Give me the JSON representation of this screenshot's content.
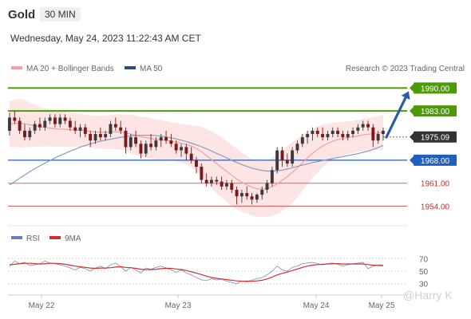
{
  "header": {
    "symbol": "Gold",
    "timeframe": "30 MIN",
    "datetime": "Wednesday, May 24, 2023 11:22:43 AM CET"
  },
  "legend": {
    "ma20": "MA 20 + Bollinger Bands",
    "ma50": "MA 50",
    "credit": "Research © 2023 Trading Central",
    "rsi": "RSI",
    "rsi_ma": "9MA"
  },
  "watermark": "@Harry K",
  "colors": {
    "up": "#3b3b3b",
    "down": "#7a1a1a",
    "band": "#fde0e0",
    "ma20": "#f2a0a0",
    "ma50": "#8a9bbf",
    "resistance": "#4e9a06",
    "pivot": "#1f5fbf",
    "support": "#e06060",
    "current": "#333333",
    "arrow": "#2a5aa8",
    "rsi": "#8a9bbf",
    "rsi_ma": "#d03030"
  },
  "chart_data": {
    "type": "candlestick",
    "x_ticks": [
      "May 22",
      "May 23",
      "May 24",
      "May 25"
    ],
    "y_range": [
      1950,
      1993
    ],
    "levels": [
      {
        "value": 1990.0,
        "label": "1990.00",
        "kind": "resistance"
      },
      {
        "value": 1983.0,
        "label": "1983.00",
        "kind": "resistance"
      },
      {
        "value": 1975.09,
        "label": "1975.09",
        "kind": "current"
      },
      {
        "value": 1968.0,
        "label": "1968.00",
        "kind": "pivot"
      },
      {
        "value": 1961.0,
        "label": "1961.00",
        "kind": "support"
      },
      {
        "value": 1954.0,
        "label": "1954.00",
        "kind": "support"
      }
    ],
    "candles": [
      {
        "o": 1977,
        "h": 1982.5,
        "l": 1975.5,
        "c": 1981
      },
      {
        "o": 1981,
        "h": 1983,
        "l": 1979,
        "c": 1980
      },
      {
        "o": 1980,
        "h": 1981,
        "l": 1976,
        "c": 1977
      },
      {
        "o": 1977,
        "h": 1979,
        "l": 1974,
        "c": 1975
      },
      {
        "o": 1975,
        "h": 1978,
        "l": 1974,
        "c": 1977
      },
      {
        "o": 1977,
        "h": 1980,
        "l": 1976,
        "c": 1979
      },
      {
        "o": 1979,
        "h": 1981,
        "l": 1977,
        "c": 1978
      },
      {
        "o": 1978,
        "h": 1981,
        "l": 1977,
        "c": 1980
      },
      {
        "o": 1980,
        "h": 1982,
        "l": 1979,
        "c": 1981
      },
      {
        "o": 1981,
        "h": 1982,
        "l": 1978,
        "c": 1979
      },
      {
        "o": 1979,
        "h": 1982,
        "l": 1978,
        "c": 1981
      },
      {
        "o": 1981,
        "h": 1982,
        "l": 1979,
        "c": 1980
      },
      {
        "o": 1980,
        "h": 1981,
        "l": 1977,
        "c": 1978
      },
      {
        "o": 1978,
        "h": 1980,
        "l": 1976,
        "c": 1977
      },
      {
        "o": 1977,
        "h": 1979,
        "l": 1975,
        "c": 1978
      },
      {
        "o": 1978,
        "h": 1979,
        "l": 1975,
        "c": 1976
      },
      {
        "o": 1976,
        "h": 1977,
        "l": 1972,
        "c": 1974
      },
      {
        "o": 1974,
        "h": 1977,
        "l": 1973,
        "c": 1976
      },
      {
        "o": 1976,
        "h": 1978,
        "l": 1974,
        "c": 1975
      },
      {
        "o": 1975,
        "h": 1977,
        "l": 1974,
        "c": 1976
      },
      {
        "o": 1976,
        "h": 1980,
        "l": 1975,
        "c": 1979
      },
      {
        "o": 1979,
        "h": 1981,
        "l": 1977,
        "c": 1978
      },
      {
        "o": 1978,
        "h": 1980,
        "l": 1976,
        "c": 1977
      },
      {
        "o": 1977,
        "h": 1978,
        "l": 1970,
        "c": 1972
      },
      {
        "o": 1972,
        "h": 1976,
        "l": 1971,
        "c": 1975
      },
      {
        "o": 1975,
        "h": 1977,
        "l": 1972,
        "c": 1973
      },
      {
        "o": 1973,
        "h": 1974,
        "l": 1968.5,
        "c": 1970
      },
      {
        "o": 1970,
        "h": 1974,
        "l": 1969,
        "c": 1973
      },
      {
        "o": 1973,
        "h": 1976,
        "l": 1971,
        "c": 1972
      },
      {
        "o": 1972,
        "h": 1975,
        "l": 1971,
        "c": 1974
      },
      {
        "o": 1974,
        "h": 1976,
        "l": 1972,
        "c": 1975
      },
      {
        "o": 1975,
        "h": 1977,
        "l": 1973,
        "c": 1974
      },
      {
        "o": 1974,
        "h": 1976,
        "l": 1972,
        "c": 1973
      },
      {
        "o": 1973,
        "h": 1974,
        "l": 1970,
        "c": 1971
      },
      {
        "o": 1971,
        "h": 1973,
        "l": 1969,
        "c": 1972
      },
      {
        "o": 1972,
        "h": 1973,
        "l": 1968,
        "c": 1970
      },
      {
        "o": 1970,
        "h": 1972,
        "l": 1967,
        "c": 1968
      },
      {
        "o": 1968,
        "h": 1969,
        "l": 1964,
        "c": 1966
      },
      {
        "o": 1966,
        "h": 1967,
        "l": 1961,
        "c": 1962
      },
      {
        "o": 1962,
        "h": 1964,
        "l": 1960,
        "c": 1961
      },
      {
        "o": 1961,
        "h": 1963,
        "l": 1960,
        "c": 1962
      },
      {
        "o": 1962,
        "h": 1963,
        "l": 1960.5,
        "c": 1961.5
      },
      {
        "o": 1961.5,
        "h": 1963,
        "l": 1959,
        "c": 1960
      },
      {
        "o": 1960,
        "h": 1962,
        "l": 1959,
        "c": 1961
      },
      {
        "o": 1961,
        "h": 1962,
        "l": 1958,
        "c": 1959
      },
      {
        "o": 1959,
        "h": 1960,
        "l": 1954.5,
        "c": 1957
      },
      {
        "o": 1957,
        "h": 1959,
        "l": 1955,
        "c": 1958
      },
      {
        "o": 1958,
        "h": 1960,
        "l": 1956,
        "c": 1957
      },
      {
        "o": 1957,
        "h": 1958,
        "l": 1954.5,
        "c": 1956
      },
      {
        "o": 1956,
        "h": 1958,
        "l": 1955,
        "c": 1957.5
      },
      {
        "o": 1957.5,
        "h": 1960,
        "l": 1956,
        "c": 1959
      },
      {
        "o": 1959,
        "h": 1962,
        "l": 1958,
        "c": 1961
      },
      {
        "o": 1961,
        "h": 1966,
        "l": 1960,
        "c": 1965
      },
      {
        "o": 1965,
        "h": 1972,
        "l": 1964,
        "c": 1971
      },
      {
        "o": 1971,
        "h": 1972,
        "l": 1966,
        "c": 1968
      },
      {
        "o": 1968,
        "h": 1970,
        "l": 1966,
        "c": 1967
      },
      {
        "o": 1967,
        "h": 1972,
        "l": 1966,
        "c": 1971
      },
      {
        "o": 1971,
        "h": 1974,
        "l": 1970,
        "c": 1973
      },
      {
        "o": 1973,
        "h": 1976,
        "l": 1972,
        "c": 1975
      },
      {
        "o": 1975,
        "h": 1977,
        "l": 1973,
        "c": 1976
      },
      {
        "o": 1976,
        "h": 1978,
        "l": 1974,
        "c": 1977
      },
      {
        "o": 1977,
        "h": 1978,
        "l": 1975,
        "c": 1976
      },
      {
        "o": 1976,
        "h": 1978,
        "l": 1974,
        "c": 1975
      },
      {
        "o": 1975,
        "h": 1977,
        "l": 1974,
        "c": 1976
      },
      {
        "o": 1976,
        "h": 1978,
        "l": 1975,
        "c": 1977
      },
      {
        "o": 1977,
        "h": 1978,
        "l": 1975,
        "c": 1976
      },
      {
        "o": 1976,
        "h": 1977,
        "l": 1974,
        "c": 1975
      },
      {
        "o": 1975,
        "h": 1977,
        "l": 1974,
        "c": 1976
      },
      {
        "o": 1976,
        "h": 1978,
        "l": 1975,
        "c": 1977
      },
      {
        "o": 1977,
        "h": 1979,
        "l": 1976,
        "c": 1978
      },
      {
        "o": 1978,
        "h": 1980,
        "l": 1977,
        "c": 1979
      },
      {
        "o": 1979,
        "h": 1980,
        "l": 1977,
        "c": 1978
      },
      {
        "o": 1978,
        "h": 1979,
        "l": 1972,
        "c": 1974
      },
      {
        "o": 1974,
        "h": 1977,
        "l": 1973,
        "c": 1976
      },
      {
        "o": 1976,
        "h": 1978,
        "l": 1974,
        "c": 1977
      }
    ],
    "ma20": [
      1979,
      1979.2,
      1979.3,
      1979.1,
      1978.8,
      1978.5,
      1978.2,
      1978,
      1977.8,
      1977.6,
      1977.5,
      1977.4,
      1977.3,
      1977.2,
      1977.1,
      1977,
      1976.8,
      1976.6,
      1976.5,
      1976.5,
      1976.6,
      1976.7,
      1976.6,
      1976.3,
      1976,
      1975.6,
      1975.2,
      1974.9,
      1974.6,
      1974.4,
      1974.2,
      1974,
      1973.8,
      1973.5,
      1973.2,
      1972.8,
      1972.3,
      1971.6,
      1970.6,
      1969.4,
      1968.2,
      1967,
      1965.8,
      1964.6,
      1963.4,
      1962.3,
      1961.3,
      1960.5,
      1959.8,
      1959.3,
      1959.2,
      1959.4,
      1959.9,
      1960.8,
      1961.9,
      1963,
      1964.3,
      1965.7,
      1967.2,
      1968.7,
      1970.1,
      1971.3,
      1972.3,
      1973.1,
      1973.8,
      1974.3,
      1974.6,
      1974.9,
      1975.1,
      1975.4,
      1975.7,
      1975.9,
      1976.1,
      1976.3,
      1976.5
    ],
    "ma50": [
      1960.5,
      1961.5,
      1962.5,
      1963.5,
      1964.5,
      1965.4,
      1966.3,
      1967.1,
      1967.9,
      1968.7,
      1969.4,
      1970.1,
      1970.8,
      1971.4,
      1972,
      1972.5,
      1973,
      1973.4,
      1973.8,
      1974.1,
      1974.4,
      1974.7,
      1975,
      1975.2,
      1975.4,
      1975.5,
      1975.6,
      1975.6,
      1975.6,
      1975.5,
      1975.3,
      1975.1,
      1974.8,
      1974.5,
      1974.1,
      1973.7,
      1973.2,
      1972.7,
      1972.1,
      1971.5,
      1970.8,
      1970.1,
      1969.4,
      1968.7,
      1968,
      1967.3,
      1966.7,
      1966.1,
      1965.6,
      1965.2,
      1964.9,
      1964.7,
      1964.7,
      1964.8,
      1965,
      1965.3,
      1965.7,
      1966.1,
      1966.5,
      1966.9,
      1967.3,
      1967.6,
      1967.9,
      1968.2,
      1968.5,
      1968.8,
      1969.1,
      1969.4,
      1969.7,
      1970,
      1970.4,
      1970.8,
      1971.3,
      1971.9,
      1972.5
    ],
    "band_width": [
      7,
      7.2,
      7.4,
      7.2,
      6.8,
      6.4,
      6,
      5.8,
      5.6,
      5.5,
      5.4,
      5.3,
      5.2,
      5.1,
      5,
      4.9,
      4.9,
      4.9,
      5,
      5.1,
      5.2,
      5.3,
      5.4,
      5.6,
      5.8,
      6,
      6.1,
      6.2,
      6.2,
      6.1,
      6,
      5.9,
      5.8,
      5.8,
      5.9,
      6.1,
      6.4,
      6.9,
      7.5,
      8.1,
      8.6,
      9,
      9.2,
      9.3,
      9.3,
      9.2,
      9,
      8.8,
      8.6,
      8.5,
      8.5,
      8.6,
      8.8,
      9.1,
      9.3,
      9.4,
      9.3,
      9,
      8.5,
      8,
      7.5,
      7,
      6.5,
      6,
      5.6,
      5.3,
      5.1,
      5,
      4.9,
      4.9,
      4.9,
      5,
      5.1,
      5.2,
      5.3
    ],
    "forecast_arrow": {
      "from": 1975,
      "to": 1990
    },
    "rsi": {
      "ticks": [
        70,
        50,
        30
      ],
      "range": [
        22,
        78
      ],
      "values": [
        58,
        66,
        62,
        64,
        59,
        60,
        62,
        66,
        63,
        62,
        60,
        58,
        55,
        52,
        56,
        54,
        50,
        55,
        58,
        54,
        60,
        63,
        57,
        50,
        56,
        52,
        47,
        55,
        53,
        56,
        58,
        55,
        52,
        48,
        52,
        47,
        44,
        40,
        36,
        35,
        38,
        36,
        37,
        34,
        32,
        30,
        34,
        33,
        36,
        38,
        40,
        44,
        50,
        58,
        52,
        50,
        56,
        58,
        62,
        63,
        64,
        62,
        60,
        62,
        63,
        61,
        58,
        60,
        62,
        63,
        64,
        54,
        58,
        60,
        60
      ],
      "ma": [
        60,
        61,
        62,
        62.5,
        62.5,
        62,
        61.5,
        62,
        62.5,
        62.5,
        62,
        61,
        59.5,
        58,
        57,
        56,
        55,
        54.5,
        55,
        55,
        55.5,
        56.5,
        57,
        56,
        55.5,
        54.5,
        53,
        52.5,
        52.5,
        53,
        54,
        54.5,
        54.5,
        53.5,
        52.5,
        51,
        49,
        47,
        44.5,
        42,
        40,
        38.5,
        37.5,
        36.5,
        35.5,
        34.5,
        34,
        34,
        34,
        34.5,
        35.5,
        37.5,
        40.5,
        44,
        46.5,
        48.5,
        51,
        53.5,
        56,
        58,
        59.5,
        60.5,
        61,
        61.5,
        62,
        62,
        61.5,
        61.5,
        61.5,
        61.5,
        61.5,
        60.5,
        59.5,
        59,
        58.5
      ]
    }
  }
}
